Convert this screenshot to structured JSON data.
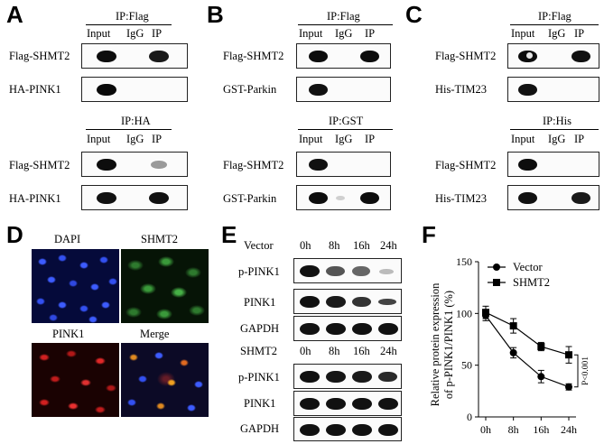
{
  "panels": {
    "A": {
      "label": "A",
      "top": {
        "ip_title": "IP:Flag",
        "lanes": [
          "Input",
          "IgG",
          "IP"
        ],
        "rows": [
          "Flag-SHMT2",
          "HA-PINK1"
        ]
      },
      "bottom": {
        "ip_title": "IP:HA",
        "lanes": [
          "Input",
          "IgG",
          "IP"
        ],
        "rows": [
          "Flag-SHMT2",
          "HA-PINK1"
        ]
      }
    },
    "B": {
      "label": "B",
      "top": {
        "ip_title": "IP:Flag",
        "lanes": [
          "Input",
          "IgG",
          "IP"
        ],
        "rows": [
          "Flag-SHMT2",
          "GST-Parkin"
        ]
      },
      "bottom": {
        "ip_title": "IP:GST",
        "lanes": [
          "Input",
          "IgG",
          "IP"
        ],
        "rows": [
          "Flag-SHMT2",
          "GST-Parkin"
        ]
      }
    },
    "C": {
      "label": "C",
      "top": {
        "ip_title": "IP:Flag",
        "lanes": [
          "Input",
          "IgG",
          "IP"
        ],
        "rows": [
          "Flag-SHMT2",
          "His-TIM23"
        ]
      },
      "bottom": {
        "ip_title": "IP:His",
        "lanes": [
          "Input",
          "IgG",
          "IP"
        ],
        "rows": [
          "Flag-SHMT2",
          "His-TIM23"
        ]
      }
    },
    "D": {
      "label": "D",
      "images": [
        "DAPI",
        "SHMT2",
        "PINK1",
        "Merge"
      ]
    },
    "E": {
      "label": "E",
      "vector": {
        "group": "Vector",
        "times": [
          "0h",
          "8h",
          "16h",
          "24h"
        ],
        "rows": [
          "p-PINK1",
          "PINK1",
          "GAPDH"
        ]
      },
      "shmt2": {
        "group": "SHMT2",
        "times": [
          "0h",
          "8h",
          "16h",
          "24h"
        ],
        "rows": [
          "p-PINK1",
          "PINK1",
          "GAPDH"
        ]
      }
    },
    "F": {
      "label": "F"
    }
  },
  "chart_data": {
    "type": "line",
    "ylabel": "Relative protein expression of p-PINK1/PINK1 (%)",
    "ylabel_lines": [
      "Relative protein expression",
      "of p-PINK1/PINK1 (%)"
    ],
    "xlabel": "",
    "categories": [
      "0h",
      "8h",
      "16h",
      "24h"
    ],
    "ylim": [
      0,
      150
    ],
    "yticks": [
      0,
      50,
      100,
      150
    ],
    "legend_position": "top-center",
    "series": [
      {
        "name": "Vector",
        "marker": "circle",
        "values": [
          98,
          62,
          39,
          29
        ],
        "errors": [
          5,
          5,
          6,
          3
        ]
      },
      {
        "name": "SHMT2",
        "marker": "square",
        "values": [
          101,
          88,
          68,
          60
        ],
        "errors": [
          6,
          7,
          4,
          8
        ]
      }
    ],
    "annotation": "P<0.001"
  }
}
